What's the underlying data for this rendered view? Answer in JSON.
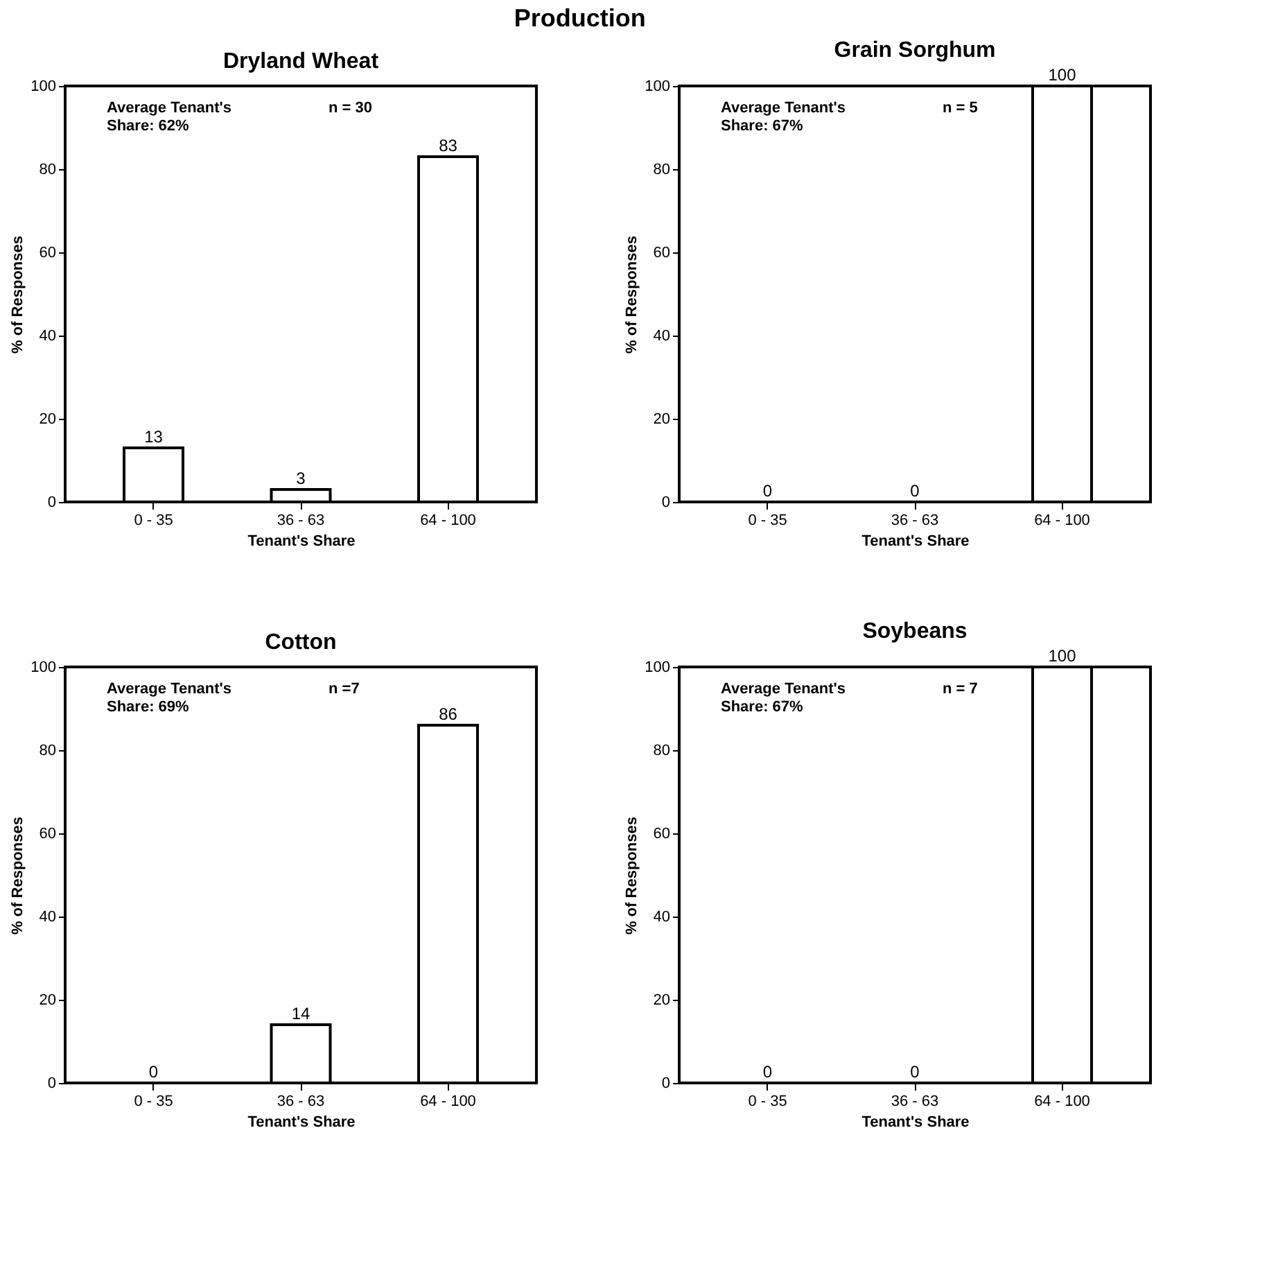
{
  "chart_data": [
    {
      "type": "bar",
      "title": "Dryland Wheat",
      "xlabel": "Tenant's Share",
      "ylabel": "% of Responses",
      "categories": [
        "0 - 35",
        "36 - 63",
        "64 - 100"
      ],
      "values": [
        13,
        3,
        83
      ],
      "color": "#ffffff",
      "ylim": [
        0,
        100
      ],
      "yticks": [
        0,
        20,
        40,
        60,
        80,
        100
      ],
      "data_labels": true,
      "grid": false,
      "annotations": [
        "Production",
        "Average Tenant's\nShare: 62%",
        "n = 30"
      ]
    },
    {
      "type": "bar",
      "title": "Grain Sorghum",
      "xlabel": "Tenant's Share",
      "ylabel": "% of Responses",
      "categories": [
        "0 - 35",
        "36 - 63",
        "64 - 100"
      ],
      "values": [
        0,
        0,
        100
      ],
      "color": "#ffffff",
      "ylim": [
        0,
        100
      ],
      "yticks": [
        0,
        20,
        40,
        60,
        80,
        100
      ],
      "data_labels": true,
      "grid": false,
      "annotations": [
        "Average Tenant's\nShare: 67%",
        "n = 5"
      ]
    },
    {
      "type": "bar",
      "title": "Cotton",
      "xlabel": "Tenant's Share",
      "ylabel": "% of Responses",
      "categories": [
        "0 - 35",
        "36 - 63",
        "64 - 100"
      ],
      "values": [
        0,
        14,
        86
      ],
      "color": "#ffffff",
      "ylim": [
        0,
        100
      ],
      "yticks": [
        0,
        20,
        40,
        60,
        80,
        100
      ],
      "data_labels": true,
      "grid": false,
      "annotations": [
        "Average Tenant's\nShare: 69%",
        "n =7"
      ]
    },
    {
      "type": "bar",
      "title": "Soybeans",
      "xlabel": "Tenant's Share",
      "ylabel": "% of Responses",
      "categories": [
        "0 - 35",
        "36 - 63",
        "64 - 100"
      ],
      "values": [
        0,
        0,
        100
      ],
      "color": "#ffffff",
      "ylim": [
        0,
        100
      ],
      "yticks": [
        0,
        20,
        40,
        60,
        80,
        100
      ],
      "data_labels": true,
      "grid": false,
      "annotations": [
        "Average Tenant's\nShare: 67%",
        "n = 7"
      ]
    }
  ]
}
